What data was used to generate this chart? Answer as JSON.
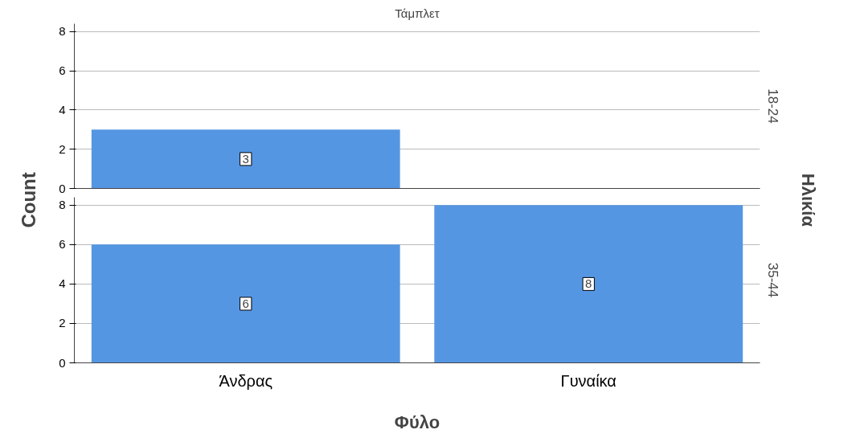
{
  "chart_data": [
    {
      "type": "bar",
      "title": "Τάμπλετ",
      "ylabel": "Count",
      "y2label": "18-24",
      "annotations": [
        "Ηλικία"
      ],
      "categories": [
        null,
        null
      ],
      "values": [
        3,
        null
      ],
      "color": "#5596e3",
      "ylim": [
        0,
        8.4
      ],
      "yticks": [
        0,
        2,
        4,
        6,
        8
      ],
      "grid": "y",
      "data_labels": true,
      "tick_labels": "y"
    },
    {
      "type": "bar",
      "xlabel": "Φύλο",
      "y2label": "35-44",
      "categories": [
        "Άνδρας",
        "Γυναίκα"
      ],
      "values": [
        6,
        8
      ],
      "color": "#5596e3",
      "ylim": [
        0,
        8.4
      ],
      "yticks": [
        0,
        2,
        4,
        6,
        8
      ],
      "grid": "y",
      "data_labels": true
    }
  ]
}
